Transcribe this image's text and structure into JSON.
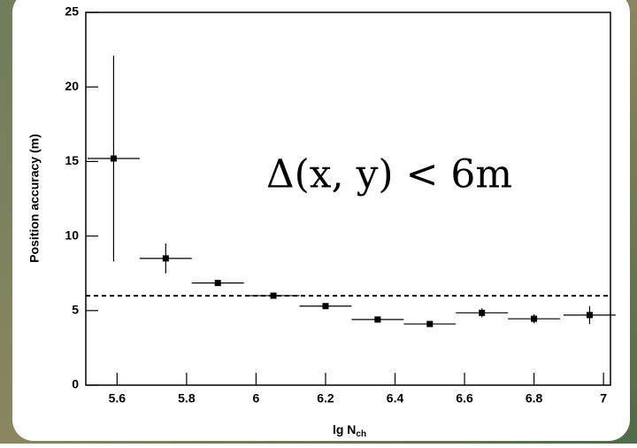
{
  "chart_data": {
    "type": "scatter",
    "x_label": {
      "text": "lg N",
      "subscript": "ch"
    },
    "y_label": "Position accuracy (m)",
    "annotation": "Δ(x, y) < 6m",
    "x": [
      5.59,
      5.74,
      5.89,
      6.05,
      6.2,
      6.35,
      6.5,
      6.65,
      6.8,
      6.96
    ],
    "xerr": [
      0.075,
      0.075,
      0.075,
      0.075,
      0.075,
      0.075,
      0.075,
      0.075,
      0.075,
      0.075
    ],
    "values": [
      15.2,
      8.5,
      6.85,
      6.0,
      5.3,
      4.4,
      4.1,
      4.85,
      4.45,
      4.7
    ],
    "yerr": [
      6.9,
      1.0,
      0.2,
      0.05,
      0.1,
      0.1,
      0.1,
      0.3,
      0.3,
      0.6
    ],
    "color": "#000000",
    "hline": 6,
    "xlim": [
      5.51,
      7.02
    ],
    "ylim": [
      0,
      25
    ],
    "xticks": [
      5.6,
      5.8,
      6,
      6.2,
      6.4,
      6.6,
      6.8,
      7
    ],
    "yticks": [
      0,
      5,
      10,
      15,
      20,
      25
    ],
    "grid": false
  }
}
